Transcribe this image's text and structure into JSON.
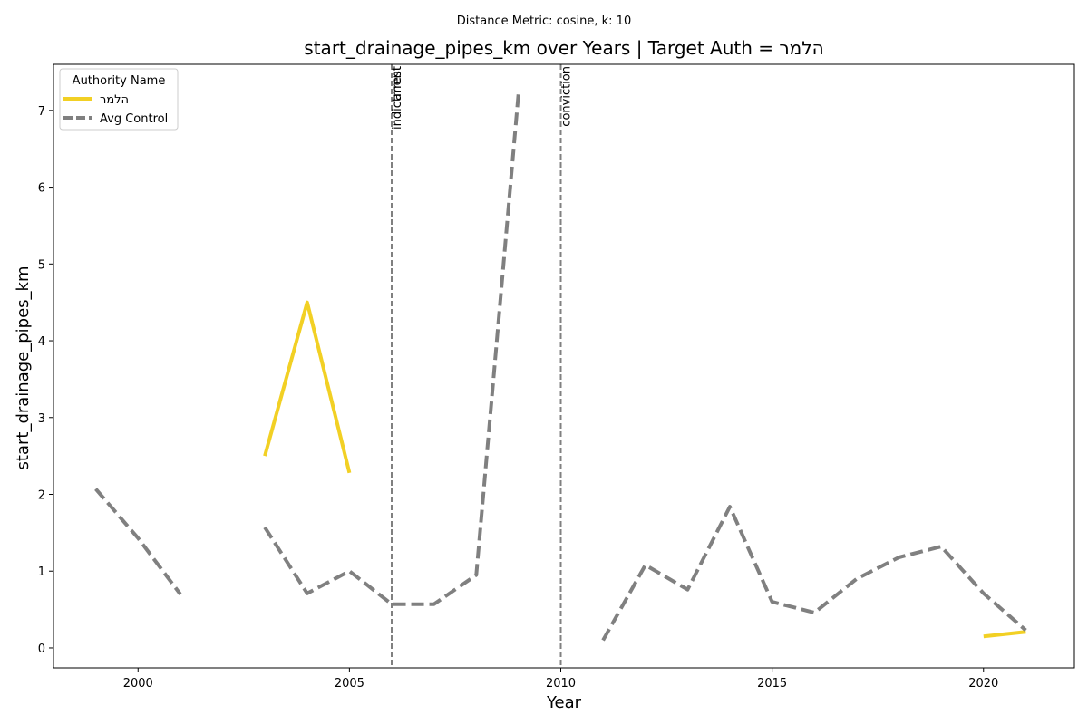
{
  "chart_data": {
    "type": "line",
    "subtitle": "Distance Metric: cosine, k: 10",
    "title": "start_drainage_pipes_km over Years | Target Auth = הלמר",
    "xlabel": "Year",
    "ylabel": "start_drainage_pipes_km",
    "xlim": [
      1998,
      2022.15
    ],
    "ylim": [
      -0.26,
      7.6
    ],
    "xticks": [
      2000,
      2005,
      2010,
      2015,
      2020
    ],
    "yticks": [
      0,
      1,
      2,
      3,
      4,
      5,
      6,
      7
    ],
    "grid": false,
    "legend": {
      "title": "Authority Name",
      "placement": "top-left"
    },
    "series": [
      {
        "name": "הלמר",
        "color": "#f2d024",
        "style": "solid",
        "points": [
          [
            2003,
            2.5
          ],
          [
            2004,
            4.5
          ],
          [
            2005,
            2.28
          ],
          [
            2020,
            0.15
          ],
          [
            2021,
            0.21
          ]
        ],
        "segments": [
          [
            0,
            2
          ],
          [
            3,
            4
          ]
        ]
      },
      {
        "name": "Avg Control",
        "color": "#808080",
        "style": "dashed",
        "points": [
          [
            1999,
            2.07
          ],
          [
            2000,
            1.43
          ],
          [
            2001,
            0.7
          ],
          [
            2003,
            1.57
          ],
          [
            2004,
            0.71
          ],
          [
            2005,
            1.0
          ],
          [
            2006,
            0.57
          ],
          [
            2007,
            0.57
          ],
          [
            2008,
            0.95
          ],
          [
            2009,
            7.23
          ],
          [
            2011,
            0.1
          ],
          [
            2012,
            1.08
          ],
          [
            2013,
            0.76
          ],
          [
            2014,
            1.84
          ],
          [
            2015,
            0.6
          ],
          [
            2016,
            0.46
          ],
          [
            2017,
            0.9
          ],
          [
            2018,
            1.18
          ],
          [
            2019,
            1.32
          ],
          [
            2020,
            0.71
          ],
          [
            2021,
            0.23
          ]
        ],
        "segments": [
          [
            0,
            2
          ],
          [
            3,
            9
          ],
          [
            10,
            20
          ]
        ]
      }
    ],
    "events": [
      {
        "x": 2006,
        "labels": [
          "indictment",
          "arrest"
        ]
      },
      {
        "x": 2010,
        "labels": [
          "conviction"
        ]
      }
    ]
  }
}
